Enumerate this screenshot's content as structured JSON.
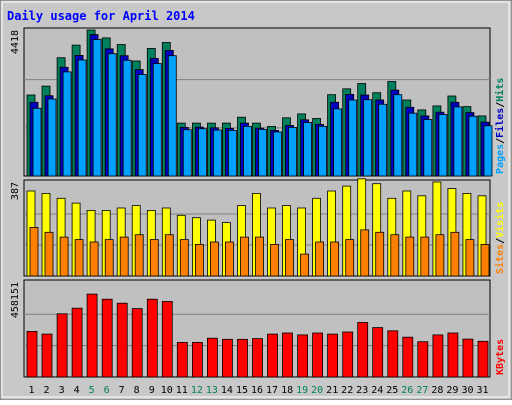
{
  "chart_data": [
    {
      "type": "bar",
      "title": "Daily usage for April 2014",
      "panel": "hits-files-pages",
      "ylabel_max": "4418",
      "side_labels": [
        {
          "text": "Pages",
          "color": "#00a0ff"
        },
        {
          "text": "Files",
          "color": "#0000c0"
        },
        {
          "text": "Hits",
          "color": "#00805c"
        }
      ],
      "ymax": 4418,
      "grid": true,
      "series": [
        {
          "name": "Hits",
          "color": "#00805c",
          "values": [
            2450,
            2720,
            3580,
            3960,
            4418,
            4180,
            3980,
            3480,
            3860,
            4040,
            1600,
            1600,
            1600,
            1600,
            1780,
            1600,
            1500,
            1760,
            1880,
            1740,
            2460,
            2640,
            2800,
            2520,
            2860,
            2300,
            2000,
            2120,
            2420,
            2100,
            1820
          ]
        },
        {
          "name": "Files",
          "color": "#0000c0",
          "values": [
            2230,
            2430,
            3290,
            3650,
            4280,
            3850,
            3640,
            3220,
            3560,
            3800,
            1470,
            1480,
            1460,
            1440,
            1600,
            1450,
            1380,
            1530,
            1700,
            1560,
            2230,
            2470,
            2450,
            2300,
            2600,
            2080,
            1820,
            1930,
            2230,
            1920,
            1630
          ]
        },
        {
          "name": "Pages",
          "color": "#00a0ff",
          "values": [
            2050,
            2330,
            3150,
            3510,
            4130,
            3700,
            3500,
            3070,
            3400,
            3640,
            1400,
            1430,
            1390,
            1380,
            1500,
            1410,
            1330,
            1470,
            1620,
            1500,
            2030,
            2300,
            2310,
            2170,
            2460,
            1900,
            1710,
            1860,
            2090,
            1810,
            1520
          ]
        }
      ]
    },
    {
      "type": "bar",
      "panel": "visits-sites",
      "ylabel_max": "387",
      "side_labels": [
        {
          "text": "Sites",
          "color": "#ff8000"
        },
        {
          "text": "Visits",
          "color": "#ffff00"
        }
      ],
      "ymax": 387,
      "grid": true,
      "series": [
        {
          "name": "Visits",
          "color": "#ffff00",
          "values": [
            350,
            340,
            320,
            300,
            270,
            270,
            280,
            290,
            270,
            280,
            250,
            240,
            230,
            220,
            290,
            340,
            280,
            290,
            280,
            320,
            350,
            370,
            400,
            380,
            320,
            350,
            330,
            387,
            360,
            340,
            330
          ]
        },
        {
          "name": "Sites",
          "color": "#ff8000",
          "values": [
            200,
            180,
            160,
            150,
            140,
            150,
            160,
            170,
            150,
            170,
            150,
            130,
            140,
            140,
            160,
            160,
            130,
            150,
            90,
            140,
            140,
            150,
            190,
            180,
            170,
            160,
            160,
            170,
            180,
            150,
            130
          ]
        }
      ]
    },
    {
      "type": "bar",
      "panel": "kbytes",
      "ylabel_max": "458151",
      "side_labels": [
        {
          "text": "KBytes",
          "color": "#ff0000"
        }
      ],
      "ymax": 458151,
      "grid": true,
      "series": [
        {
          "name": "KBytes",
          "color": "#ff0000",
          "values": [
            220000,
            207000,
            305000,
            332000,
            400000,
            375000,
            356000,
            330000,
            375000,
            364000,
            167000,
            167000,
            187000,
            182000,
            182000,
            185000,
            207000,
            212000,
            203000,
            212000,
            207000,
            217000,
            263000,
            238000,
            223000,
            192000,
            170000,
            203000,
            212000,
            183000,
            172000
          ]
        }
      ]
    }
  ],
  "x_labels": [
    {
      "text": "1",
      "weekend": false
    },
    {
      "text": "2",
      "weekend": false
    },
    {
      "text": "3",
      "weekend": false
    },
    {
      "text": "4",
      "weekend": false
    },
    {
      "text": "5",
      "weekend": true
    },
    {
      "text": "6",
      "weekend": true
    },
    {
      "text": "7",
      "weekend": false
    },
    {
      "text": "8",
      "weekend": false
    },
    {
      "text": "9",
      "weekend": false
    },
    {
      "text": "10",
      "weekend": false
    },
    {
      "text": "11",
      "weekend": false
    },
    {
      "text": "12",
      "weekend": true
    },
    {
      "text": "13",
      "weekend": true
    },
    {
      "text": "14",
      "weekend": false
    },
    {
      "text": "15",
      "weekend": false
    },
    {
      "text": "16",
      "weekend": false
    },
    {
      "text": "17",
      "weekend": false
    },
    {
      "text": "18",
      "weekend": false
    },
    {
      "text": "19",
      "weekend": true
    },
    {
      "text": "20",
      "weekend": true
    },
    {
      "text": "21",
      "weekend": false
    },
    {
      "text": "22",
      "weekend": false
    },
    {
      "text": "23",
      "weekend": false
    },
    {
      "text": "24",
      "weekend": false
    },
    {
      "text": "25",
      "weekend": false
    },
    {
      "text": "26",
      "weekend": true
    },
    {
      "text": "27",
      "weekend": true
    },
    {
      "text": "28",
      "weekend": false
    },
    {
      "text": "29",
      "weekend": false
    },
    {
      "text": "30",
      "weekend": false
    },
    {
      "text": "31",
      "weekend": false
    }
  ],
  "colors": {
    "panel_bg": "#c0c0c0",
    "frame_bg": "#c8c8c8",
    "title": "#0000ff",
    "weekday_label": "#000000",
    "weekend_label": "#00805c",
    "grid": "#808080"
  }
}
